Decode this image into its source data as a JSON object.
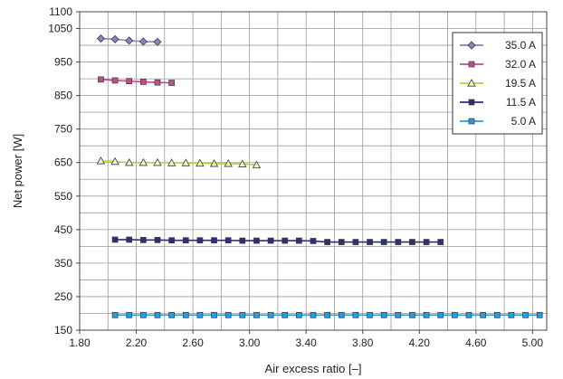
{
  "chart_data": {
    "type": "line",
    "xlabel": "Air excess ratio [–]",
    "ylabel": "Net power [W]",
    "xlim": [
      1.8,
      5.1
    ],
    "ylim": [
      150,
      1100
    ],
    "xticks": [
      "1.80",
      "2.20",
      "2.60",
      "3.00",
      "3.40",
      "3.80",
      "4.20",
      "4.60",
      "5.00"
    ],
    "xtick_values": [
      1.8,
      2.2,
      2.6,
      3.0,
      3.4,
      3.8,
      4.2,
      4.6,
      5.0
    ],
    "yticks": [
      "1100",
      "1050",
      "950",
      "850",
      "750",
      "650",
      "550",
      "450",
      "350",
      "250",
      "150"
    ],
    "ytick_values": [
      1100,
      1050,
      950,
      850,
      750,
      650,
      550,
      450,
      350,
      250,
      150
    ],
    "grid": true,
    "legend_position": "top-right",
    "series": [
      {
        "name": "35.0 A",
        "marker": "diamond",
        "color": "#8b82be",
        "x": [
          1.95,
          2.05,
          2.15,
          2.25,
          2.35
        ],
        "y": [
          1020,
          1018,
          1014,
          1011,
          1010
        ]
      },
      {
        "name": "32.0 A",
        "marker": "square",
        "color": "#c0508a",
        "x": [
          1.95,
          2.05,
          2.15,
          2.25,
          2.35,
          2.45
        ],
        "y": [
          898,
          895,
          893,
          891,
          889,
          888
        ]
      },
      {
        "name": "19.5 A",
        "marker": "triangle",
        "color": "#b6d034",
        "x": [
          1.95,
          2.05,
          2.15,
          2.25,
          2.35,
          2.45,
          2.55,
          2.65,
          2.75,
          2.85,
          2.95,
          3.05
        ],
        "y": [
          655,
          653,
          650,
          650,
          650,
          649,
          649,
          648,
          647,
          647,
          646,
          643
        ]
      },
      {
        "name": "11.5 A",
        "marker": "square",
        "color": "#2e2e7a",
        "x": [
          2.05,
          2.15,
          2.25,
          2.35,
          2.45,
          2.55,
          2.65,
          2.75,
          2.85,
          2.95,
          3.05,
          3.15,
          3.25,
          3.35,
          3.45,
          3.55,
          3.65,
          3.75,
          3.85,
          3.95,
          4.05,
          4.15,
          4.25,
          4.35
        ],
        "y": [
          420,
          420,
          419,
          419,
          418,
          418,
          418,
          418,
          418,
          417,
          417,
          417,
          417,
          417,
          416,
          413,
          413,
          413,
          413,
          413,
          413,
          413,
          413,
          413
        ]
      },
      {
        "name": "5.0 A",
        "marker": "square",
        "color": "#2e9bd6",
        "x": [
          2.05,
          2.15,
          2.25,
          2.35,
          2.45,
          2.55,
          2.65,
          2.75,
          2.85,
          2.95,
          3.05,
          3.15,
          3.25,
          3.35,
          3.45,
          3.55,
          3.65,
          3.75,
          3.85,
          3.95,
          4.05,
          4.15,
          4.25,
          4.35,
          4.45,
          4.55,
          4.65,
          4.75,
          4.85,
          4.95,
          5.05
        ],
        "y": [
          195,
          195,
          195,
          195,
          195,
          195,
          195,
          195,
          195,
          195,
          195,
          195,
          195,
          195,
          195,
          195,
          195,
          195,
          195,
          195,
          195,
          195,
          195,
          195,
          195,
          195,
          195,
          195,
          195,
          195,
          195
        ]
      }
    ]
  }
}
